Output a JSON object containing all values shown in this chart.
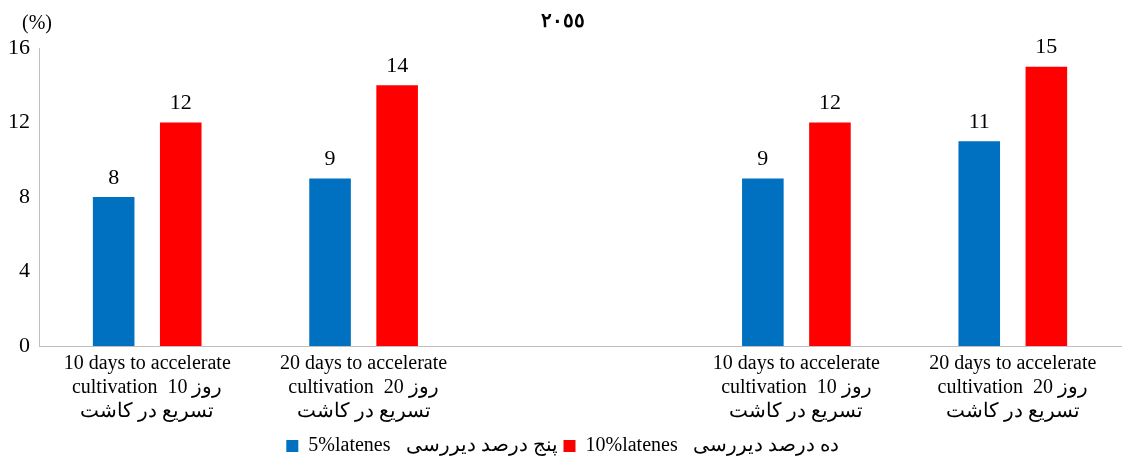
{
  "chart_data": {
    "type": "bar",
    "title": "٢٠٥٥",
    "ylabel": "(%)",
    "categories": [
      "10 days to accelerate\ncultivation  10 روز\nتسریع در کاشت",
      "20 days to accelerate\ncultivation  20 روز\nتسریع در کاشت",
      null,
      "10 days to accelerate\ncultivation  10 روز\nتسریع در کاشت",
      "20 days to accelerate\ncultivation  20 روز\nتسریع در کاشت"
    ],
    "series": [
      {
        "name": "5%latenes   پنج درصد دیررسی",
        "color": "#0070c0",
        "values": [
          8,
          9,
          null,
          9,
          11
        ]
      },
      {
        "name": "10%latenes   ده درصد دیررسی",
        "color": "#ff0000",
        "values": [
          12,
          14,
          null,
          12,
          15
        ]
      }
    ],
    "ylim": [
      0,
      16
    ],
    "yticks": [
      0,
      4,
      8,
      12,
      16
    ],
    "grid": false,
    "legend": "bottom",
    "data_labels": true
  }
}
